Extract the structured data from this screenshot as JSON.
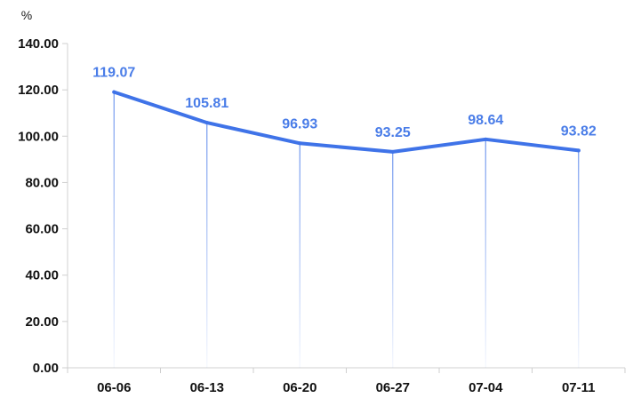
{
  "chart_data": {
    "type": "line",
    "categories": [
      "06-06",
      "06-13",
      "06-20",
      "06-27",
      "07-04",
      "07-11"
    ],
    "series": [
      {
        "values": [
          119.07,
          105.81,
          96.93,
          93.25,
          98.64,
          93.82
        ]
      }
    ],
    "data_labels": [
      "119.07",
      "105.81",
      "96.93",
      "93.25",
      "98.64",
      "93.82"
    ],
    "y_unit": "%",
    "ylim": [
      0,
      140
    ],
    "y_ticks": [
      0,
      20,
      40,
      60,
      80,
      100,
      120,
      140
    ],
    "y_tick_labels": [
      "0.00",
      "20.00",
      "40.00",
      "60.00",
      "80.00",
      "100.00",
      "120.00",
      "140.00"
    ],
    "line_color": "#3f73e8",
    "label_color": "#4a7de8",
    "grid": false,
    "drop_lines": true
  }
}
